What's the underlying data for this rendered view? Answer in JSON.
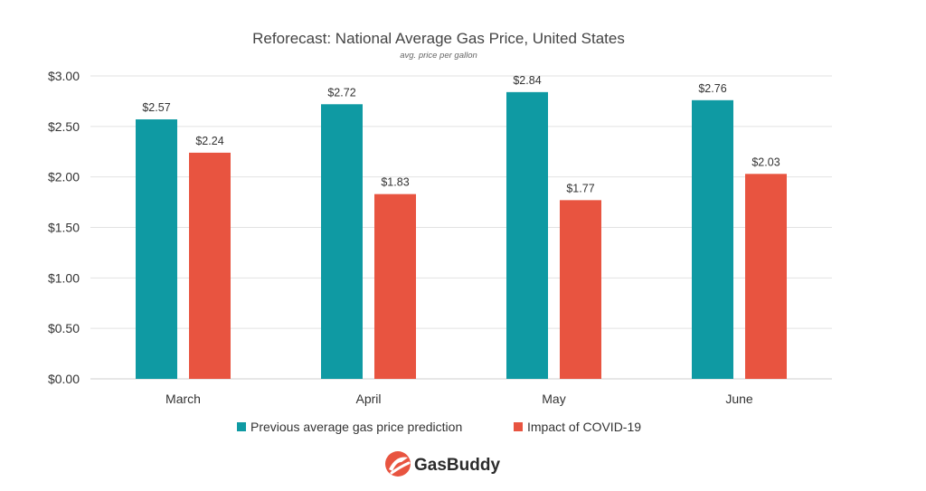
{
  "chart_data": {
    "type": "bar",
    "title": "Reforecast: National Average Gas Price, United States",
    "subtitle": "avg. price per gallon",
    "xlabel": "",
    "ylabel": "",
    "categories": [
      "March",
      "April",
      "May",
      "June"
    ],
    "series": [
      {
        "name": "Previous average gas price prediction",
        "color": "#0f9aa3",
        "values": [
          2.57,
          2.72,
          2.84,
          2.76
        ],
        "labels": [
          "$2.57",
          "$2.72",
          "$2.84",
          "$2.76"
        ]
      },
      {
        "name": "Impact of COVID-19",
        "color": "#e85440",
        "values": [
          2.24,
          1.83,
          1.77,
          2.03
        ],
        "labels": [
          "$2.24",
          "$1.83",
          "$1.77",
          "$2.03"
        ]
      }
    ],
    "ylim": [
      0,
      3
    ],
    "yticks": [
      0,
      0.5,
      1.0,
      1.5,
      2.0,
      2.5,
      3.0
    ],
    "ytick_labels": [
      "$0.00",
      "$0.50",
      "$1.00",
      "$1.50",
      "$2.00",
      "$2.50",
      "$3.00"
    ],
    "grid": true,
    "legend_position": "bottom"
  },
  "brand": {
    "name": "GasBuddy",
    "icon": "gasbuddy-logo-icon",
    "color": "#e85440"
  }
}
